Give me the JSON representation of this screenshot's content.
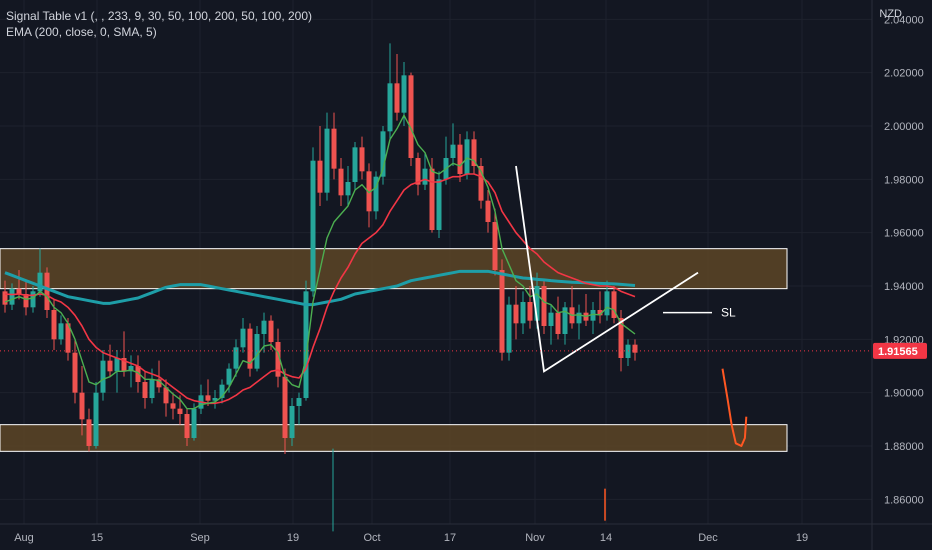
{
  "legend": {
    "line1": "Signal Table v1 (, , 233, 9, 30, 50, 100, 200, 50, 100, 200)",
    "line2": "EMA (200, close, 0, SMA, 5)"
  },
  "currency": "NZD",
  "colors": {
    "background": "#131722",
    "grid": "#1e222d",
    "up": "#26a69a",
    "down": "#ef5350",
    "ema_fast": "#4caf50",
    "ema_slow": "#f23645",
    "ema_200": "#1e9ea8",
    "zone_fill": "#5d4526",
    "zone_border": "#ffffff",
    "projection": "#ff5722",
    "price_tag": "#f23645",
    "axis_text": "#b2b5be"
  },
  "chart_data": {
    "type": "candlestick",
    "y_axis": {
      "min": 1.85,
      "max": 2.045,
      "ticks": [
        "2.04000",
        "2.02000",
        "2.00000",
        "1.98000",
        "1.96000",
        "1.94000",
        "1.92000",
        "1.90000",
        "1.88000",
        "1.86000"
      ]
    },
    "x_axis": {
      "labels": [
        "Aug",
        "15",
        "Sep",
        "19",
        "Oct",
        "17",
        "Nov",
        "14",
        "Dec",
        "19"
      ]
    },
    "last_price": "1.91565",
    "candles": [
      [
        1.938,
        1.942,
        1.93,
        1.933
      ],
      [
        1.933,
        1.941,
        1.931,
        1.939
      ],
      [
        1.939,
        1.946,
        1.935,
        1.937
      ],
      [
        1.937,
        1.942,
        1.929,
        1.932
      ],
      [
        1.932,
        1.94,
        1.93,
        1.938
      ],
      [
        1.938,
        1.954,
        1.936,
        1.945
      ],
      [
        1.945,
        1.947,
        1.928,
        1.931
      ],
      [
        1.931,
        1.935,
        1.916,
        1.92
      ],
      [
        1.92,
        1.929,
        1.918,
        1.926
      ],
      [
        1.926,
        1.928,
        1.912,
        1.915
      ],
      [
        1.915,
        1.92,
        1.896,
        1.9
      ],
      [
        1.9,
        1.91,
        1.884,
        1.89
      ],
      [
        1.89,
        1.894,
        1.878,
        1.88
      ],
      [
        1.88,
        1.904,
        1.879,
        1.9
      ],
      [
        1.9,
        1.916,
        1.897,
        1.912
      ],
      [
        1.912,
        1.918,
        1.906,
        1.908
      ],
      [
        1.908,
        1.916,
        1.9,
        1.913
      ],
      [
        1.913,
        1.923,
        1.906,
        1.908
      ],
      [
        1.908,
        1.914,
        1.902,
        1.91
      ],
      [
        1.91,
        1.914,
        1.9,
        1.904
      ],
      [
        1.904,
        1.908,
        1.894,
        1.898
      ],
      [
        1.898,
        1.909,
        1.896,
        1.905
      ],
      [
        1.905,
        1.912,
        1.9,
        1.902
      ],
      [
        1.902,
        1.905,
        1.891,
        1.896
      ],
      [
        1.896,
        1.9,
        1.89,
        1.894
      ],
      [
        1.894,
        1.899,
        1.888,
        1.892
      ],
      [
        1.892,
        1.894,
        1.88,
        1.883
      ],
      [
        1.883,
        1.896,
        1.882,
        1.894
      ],
      [
        1.894,
        1.903,
        1.892,
        1.899
      ],
      [
        1.899,
        1.905,
        1.895,
        1.897
      ],
      [
        1.897,
        1.901,
        1.894,
        1.898
      ],
      [
        1.898,
        1.905,
        1.896,
        1.903
      ],
      [
        1.903,
        1.911,
        1.9,
        1.909
      ],
      [
        1.909,
        1.92,
        1.906,
        1.917
      ],
      [
        1.917,
        1.928,
        1.915,
        1.924
      ],
      [
        1.924,
        1.926,
        1.906,
        1.909
      ],
      [
        1.909,
        1.925,
        1.908,
        1.922
      ],
      [
        1.922,
        1.93,
        1.915,
        1.927
      ],
      [
        1.927,
        1.929,
        1.916,
        1.919
      ],
      [
        1.919,
        1.924,
        1.902,
        1.906
      ],
      [
        1.906,
        1.909,
        1.877,
        1.883
      ],
      [
        1.883,
        1.898,
        1.88,
        1.895
      ],
      [
        1.895,
        1.9,
        1.888,
        1.898
      ],
      [
        1.898,
        1.942,
        1.897,
        1.938
      ],
      [
        1.938,
        1.992,
        1.936,
        1.987
      ],
      [
        1.987,
        2.0,
        1.97,
        1.975
      ],
      [
        1.975,
        2.005,
        1.972,
        1.999
      ],
      [
        1.999,
        2.005,
        1.98,
        1.984
      ],
      [
        1.984,
        1.988,
        1.97,
        1.974
      ],
      [
        1.974,
        1.985,
        1.97,
        1.979
      ],
      [
        1.979,
        1.994,
        1.976,
        1.992
      ],
      [
        1.992,
        1.996,
        1.98,
        1.983
      ],
      [
        1.983,
        1.986,
        1.962,
        1.968
      ],
      [
        1.968,
        1.983,
        1.965,
        1.981
      ],
      [
        1.981,
        2.0,
        1.978,
        1.998
      ],
      [
        1.998,
        2.031,
        1.995,
        2.016
      ],
      [
        2.016,
        2.027,
        2.002,
        2.005
      ],
      [
        2.005,
        2.024,
        2.0,
        2.019
      ],
      [
        2.019,
        2.02,
        1.985,
        1.988
      ],
      [
        1.988,
        1.99,
        1.974,
        1.978
      ],
      [
        1.978,
        1.99,
        1.976,
        1.984
      ],
      [
        1.984,
        1.988,
        1.96,
        1.961
      ],
      [
        1.961,
        1.983,
        1.958,
        1.98
      ],
      [
        1.98,
        1.996,
        1.978,
        1.988
      ],
      [
        1.988,
        2.001,
        1.985,
        1.993
      ],
      [
        1.993,
        1.997,
        1.979,
        1.982
      ],
      [
        1.982,
        1.998,
        1.98,
        1.995
      ],
      [
        1.995,
        1.998,
        1.982,
        1.985
      ],
      [
        1.985,
        1.988,
        1.969,
        1.972
      ],
      [
        1.972,
        1.976,
        1.96,
        1.964
      ],
      [
        1.964,
        1.969,
        1.944,
        1.946
      ],
      [
        1.946,
        1.95,
        1.912,
        1.915
      ],
      [
        1.915,
        1.936,
        1.912,
        1.933
      ],
      [
        1.933,
        1.94,
        1.92,
        1.926
      ],
      [
        1.926,
        1.938,
        1.922,
        1.934
      ],
      [
        1.934,
        1.94,
        1.924,
        1.927
      ],
      [
        1.927,
        1.945,
        1.924,
        1.94
      ],
      [
        1.94,
        1.942,
        1.922,
        1.925
      ],
      [
        1.925,
        1.933,
        1.918,
        1.93
      ],
      [
        1.93,
        1.936,
        1.92,
        1.922
      ],
      [
        1.922,
        1.934,
        1.918,
        1.932
      ],
      [
        1.932,
        1.94,
        1.924,
        1.926
      ],
      [
        1.926,
        1.933,
        1.92,
        1.93
      ],
      [
        1.93,
        1.937,
        1.925,
        1.927
      ],
      [
        1.927,
        1.934,
        1.922,
        1.931
      ],
      [
        1.931,
        1.938,
        1.926,
        1.929
      ],
      [
        1.929,
        1.942,
        1.927,
        1.938
      ],
      [
        1.938,
        1.94,
        1.926,
        1.928
      ],
      [
        1.928,
        1.931,
        1.908,
        1.913
      ],
      [
        1.913,
        1.92,
        1.91,
        1.918
      ],
      [
        1.918,
        1.92,
        1.912,
        1.915
      ]
    ],
    "ema_fast": [
      1.934,
      1.935,
      1.936,
      1.935,
      1.9355,
      1.938,
      1.936,
      1.932,
      1.93,
      1.926,
      1.92,
      1.912,
      1.904,
      1.903,
      1.905,
      1.906,
      1.908,
      1.908,
      1.9085,
      1.9075,
      1.905,
      1.905,
      1.9045,
      1.902,
      1.8995,
      1.8975,
      1.894,
      1.894,
      1.8955,
      1.896,
      1.8965,
      1.8985,
      1.902,
      1.907,
      1.912,
      1.911,
      1.914,
      1.9175,
      1.918,
      1.915,
      1.906,
      1.903,
      1.902,
      1.913,
      1.934,
      1.946,
      1.958,
      1.964,
      1.967,
      1.97,
      1.976,
      1.978,
      1.975,
      1.977,
      1.984,
      1.995,
      1.999,
      2.004,
      1.999,
      1.993,
      1.99,
      1.983,
      1.982,
      1.984,
      1.986,
      1.985,
      1.988,
      1.987,
      1.983,
      1.977,
      1.968,
      1.954,
      1.948,
      1.942,
      1.94,
      1.936,
      1.937,
      1.934,
      1.933,
      1.93,
      1.9305,
      1.929,
      1.9292,
      1.9286,
      1.9294,
      1.9292,
      1.932,
      1.931,
      1.926,
      1.924,
      1.922
    ],
    "ema_slow": [
      1.937,
      1.9368,
      1.937,
      1.9365,
      1.9365,
      1.937,
      1.9365,
      1.935,
      1.934,
      1.932,
      1.929,
      1.925,
      1.92,
      1.917,
      1.915,
      1.914,
      1.913,
      1.912,
      1.911,
      1.91,
      1.908,
      1.907,
      1.906,
      1.904,
      1.902,
      1.9,
      1.898,
      1.897,
      1.8965,
      1.896,
      1.896,
      1.8965,
      1.8975,
      1.899,
      1.901,
      1.902,
      1.904,
      1.906,
      1.908,
      1.9085,
      1.907,
      1.906,
      1.9055,
      1.909,
      1.917,
      1.924,
      1.932,
      1.938,
      1.943,
      1.947,
      1.952,
      1.956,
      1.958,
      1.96,
      1.963,
      1.968,
      1.972,
      1.976,
      1.978,
      1.979,
      1.98,
      1.979,
      1.979,
      1.98,
      1.981,
      1.981,
      1.982,
      1.982,
      1.981,
      1.979,
      1.975,
      1.968,
      1.964,
      1.96,
      1.957,
      1.954,
      1.952,
      1.949,
      1.947,
      1.945,
      1.944,
      1.943,
      1.942,
      1.941,
      1.9405,
      1.94,
      1.94,
      1.9395,
      1.938,
      1.937,
      1.936
    ],
    "ema_200": [
      1.945,
      1.944,
      1.943,
      1.942,
      1.941,
      1.94,
      1.939,
      1.938,
      1.937,
      1.936,
      1.9355,
      1.935,
      1.9345,
      1.934,
      1.9335,
      1.9335,
      1.934,
      1.9345,
      1.935,
      1.9355,
      1.9365,
      1.9375,
      1.9385,
      1.9395,
      1.94,
      1.9405,
      1.9405,
      1.9405,
      1.9405,
      1.94,
      1.9395,
      1.939,
      1.9385,
      1.938,
      1.9375,
      1.937,
      1.9365,
      1.936,
      1.9355,
      1.935,
      1.9345,
      1.934,
      1.9335,
      1.933,
      1.933,
      1.9335,
      1.934,
      1.9345,
      1.935,
      1.936,
      1.937,
      1.9375,
      1.938,
      1.9385,
      1.939,
      1.9395,
      1.94,
      1.941,
      1.942,
      1.9425,
      1.943,
      1.9435,
      1.944,
      1.9445,
      1.945,
      1.9455,
      1.9455,
      1.9455,
      1.9455,
      1.9455,
      1.945,
      1.9445,
      1.944,
      1.9435,
      1.943,
      1.9428,
      1.9425,
      1.9423,
      1.942,
      1.9418,
      1.9416,
      1.9414,
      1.9413,
      1.9412,
      1.9411,
      1.941,
      1.9409,
      1.9408,
      1.9406,
      1.9404,
      1.9402
    ],
    "zones": [
      {
        "top": 1.954,
        "bottom": 1.939
      },
      {
        "top": 1.888,
        "bottom": 1.878
      }
    ],
    "triangle": [
      {
        "i": 73,
        "p": 1.985
      },
      {
        "i": 77,
        "p": 1.908
      },
      {
        "i": 99,
        "p": 1.945
      }
    ],
    "sl_line": {
      "i_start": 94,
      "i_end": 101,
      "price": 1.93
    },
    "sl_label": "SL",
    "projection": [
      {
        "i": 102.5,
        "p": 1.909
      },
      {
        "i": 103.2,
        "p": 1.898
      },
      {
        "i": 103.8,
        "p": 1.888
      },
      {
        "i": 104.4,
        "p": 1.881
      },
      {
        "i": 105.2,
        "p": 1.88
      },
      {
        "i": 105.7,
        "p": 1.883
      },
      {
        "i": 105.9,
        "p": 1.891
      }
    ]
  }
}
